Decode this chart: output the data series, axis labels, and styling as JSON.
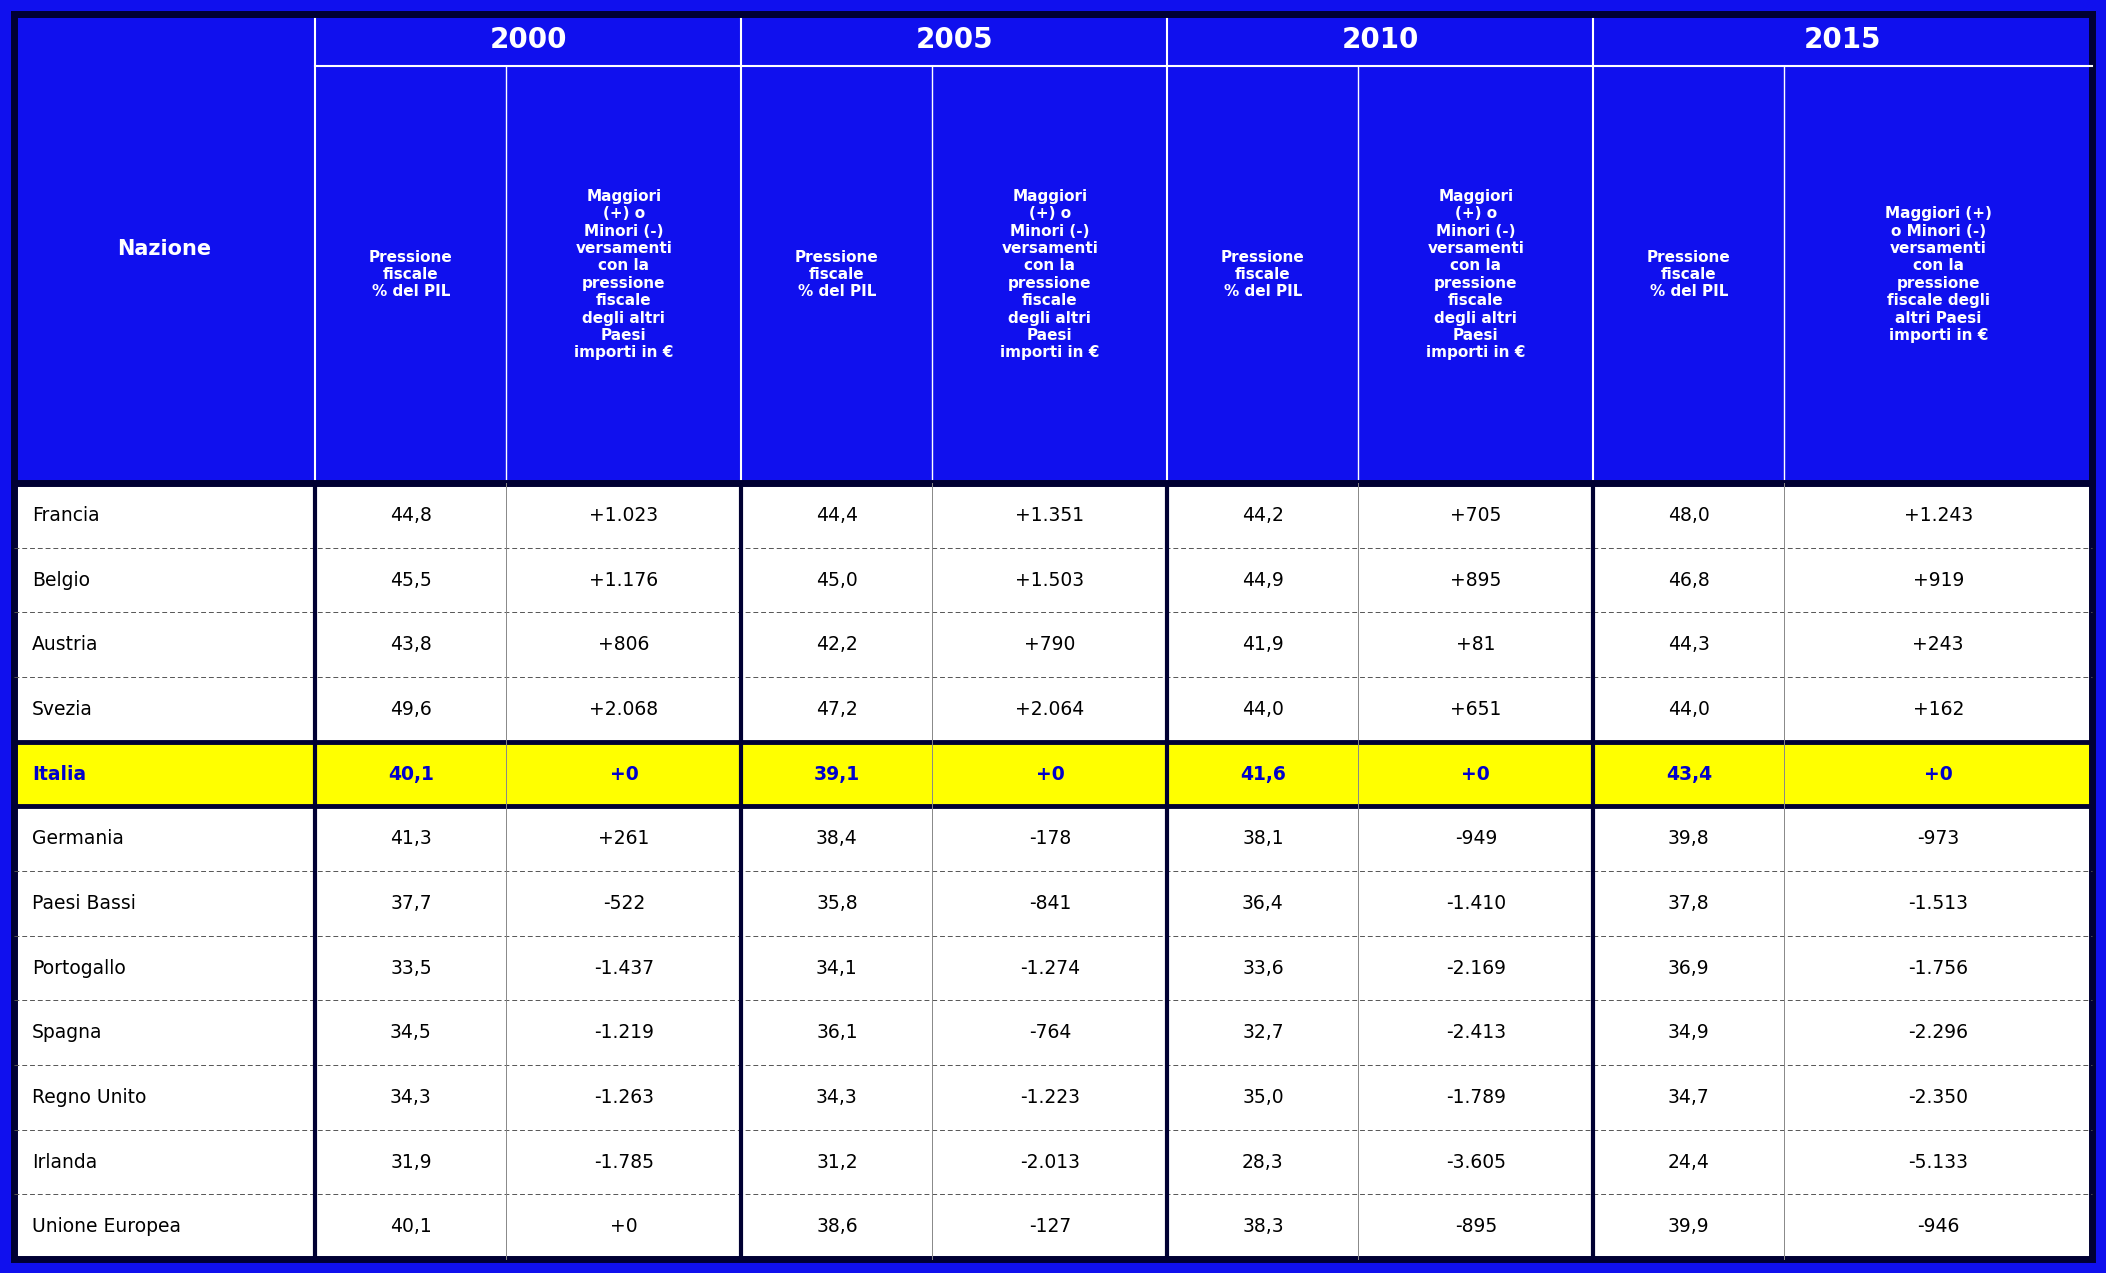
{
  "header_bg": "#1010EE",
  "header_text_color": "#FFFFFF",
  "row_bg_normal": "#FFFFFF",
  "row_bg_italia": "#FFFF00",
  "fig_bg": "#1010EE",
  "border_color": "#000033",
  "text_color_normal": "#000000",
  "text_color_italia": "#0000CC",
  "year_headers": [
    "2000",
    "2005",
    "2010",
    "2015"
  ],
  "sub_header_pressione": "Pressione\nfiscale\n% del PIL",
  "col_header_maggiori": [
    "Maggiori\n(+) o\nMinori (-)\nversamenti\ncon la\npressione\nfiscale\ndegli altri\nPaesi\nimporti in €",
    "Maggiori\n(+) o\nMinori (-)\nversamenti\ncon la\npressione\nfiscale\ndegli altri\nPaesi\nimporti in €",
    "Maggiori\n(+) o\nMinori (-)\nversamenti\ncon la\npressione\nfiscale\ndegli altri\nPaesi\nimporti in €",
    "Maggiori (+)\no Minori (-)\nversamenti\ncon la\npressione\nfiscale degli\naltri Paesi\nimporti in €"
  ],
  "nazione_header": "Nazione",
  "rows": [
    {
      "name": "Francia",
      "v2000": "44,8",
      "d2000": "+1.023",
      "v2005": "44,4",
      "d2005": "+1.351",
      "v2010": "44,2",
      "d2010": "+705",
      "v2015": "48,0",
      "d2015": "+1.243",
      "italia": false
    },
    {
      "name": "Belgio",
      "v2000": "45,5",
      "d2000": "+1.176",
      "v2005": "45,0",
      "d2005": "+1.503",
      "v2010": "44,9",
      "d2010": "+895",
      "v2015": "46,8",
      "d2015": "+919",
      "italia": false
    },
    {
      "name": "Austria",
      "v2000": "43,8",
      "d2000": "+806",
      "v2005": "42,2",
      "d2005": "+790",
      "v2010": "41,9",
      "d2010": "+81",
      "v2015": "44,3",
      "d2015": "+243",
      "italia": false
    },
    {
      "name": "Svezia",
      "v2000": "49,6",
      "d2000": "+2.068",
      "v2005": "47,2",
      "d2005": "+2.064",
      "v2010": "44,0",
      "d2010": "+651",
      "v2015": "44,0",
      "d2015": "+162",
      "italia": false
    },
    {
      "name": "Italia",
      "v2000": "40,1",
      "d2000": "+0",
      "v2005": "39,1",
      "d2005": "+0",
      "v2010": "41,6",
      "d2010": "+0",
      "v2015": "43,4",
      "d2015": "+0",
      "italia": true
    },
    {
      "name": "Germania",
      "v2000": "41,3",
      "d2000": "+261",
      "v2005": "38,4",
      "d2005": "-178",
      "v2010": "38,1",
      "d2010": "-949",
      "v2015": "39,8",
      "d2015": "-973",
      "italia": false
    },
    {
      "name": "Paesi Bassi",
      "v2000": "37,7",
      "d2000": "-522",
      "v2005": "35,8",
      "d2005": "-841",
      "v2010": "36,4",
      "d2010": "-1.410",
      "v2015": "37,8",
      "d2015": "-1.513",
      "italia": false
    },
    {
      "name": "Portogallo",
      "v2000": "33,5",
      "d2000": "-1.437",
      "v2005": "34,1",
      "d2005": "-1.274",
      "v2010": "33,6",
      "d2010": "-2.169",
      "v2015": "36,9",
      "d2015": "-1.756",
      "italia": false
    },
    {
      "name": "Spagna",
      "v2000": "34,5",
      "d2000": "-1.219",
      "v2005": "36,1",
      "d2005": "-764",
      "v2010": "32,7",
      "d2010": "-2.413",
      "v2015": "34,9",
      "d2015": "-2.296",
      "italia": false
    },
    {
      "name": "Regno Unito",
      "v2000": "34,3",
      "d2000": "-1.263",
      "v2005": "34,3",
      "d2005": "-1.223",
      "v2010": "35,0",
      "d2010": "-1.789",
      "v2015": "34,7",
      "d2015": "-2.350",
      "italia": false
    },
    {
      "name": "Irlanda",
      "v2000": "31,9",
      "d2000": "-1.785",
      "v2005": "31,2",
      "d2005": "-2.013",
      "v2010": "28,3",
      "d2010": "-3.605",
      "v2015": "24,4",
      "d2015": "-5.133",
      "italia": false
    },
    {
      "name": "Unione Europea",
      "v2000": "40,1",
      "d2000": "+0",
      "v2005": "38,6",
      "d2005": "-127",
      "v2010": "38,3",
      "d2010": "-895",
      "v2015": "39,9",
      "d2015": "-946",
      "italia": false
    }
  ]
}
